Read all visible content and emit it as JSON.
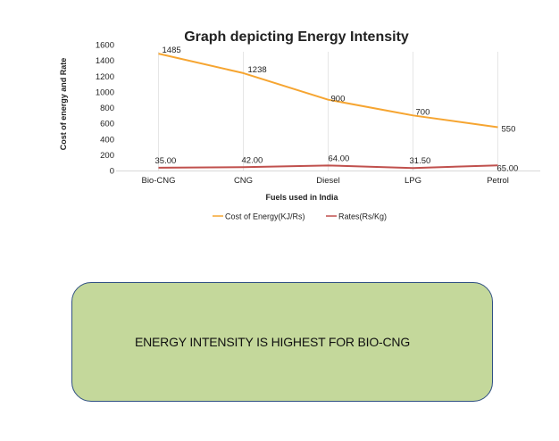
{
  "chart_data": {
    "type": "line",
    "title": "Graph depicting Energy Intensity",
    "xlabel": "Fuels used in India",
    "ylabel": "Cost of energy and Rate",
    "categories": [
      "Bio-CNG",
      "CNG",
      "Diesel",
      "LPG",
      "Petrol"
    ],
    "ylim": [
      0,
      1600
    ],
    "yticks": [
      "0",
      "200",
      "400",
      "600",
      "800",
      "1000",
      "1200",
      "1400",
      "1600"
    ],
    "legend_position": "bottom",
    "grid": false,
    "series": [
      {
        "name": "Cost of Energy(KJ/Rs)",
        "color": "#f6a531",
        "values": [
          1485,
          1238,
          900,
          700,
          550
        ],
        "labels": [
          "1485",
          "1238",
          "900",
          "700",
          "550"
        ]
      },
      {
        "name": "Rates(Rs/Kg)",
        "color": "#c0504d",
        "values": [
          35.0,
          42.0,
          64.0,
          31.5,
          65.0
        ],
        "labels": [
          "35.00",
          "42.00",
          "64.00",
          "31.50",
          "65.00"
        ]
      }
    ]
  },
  "callout": {
    "text": "ENERGY INTENSITY IS HIGHEST FOR BIO-CNG",
    "background": "#c4d89b",
    "border": "#2f4f82"
  }
}
